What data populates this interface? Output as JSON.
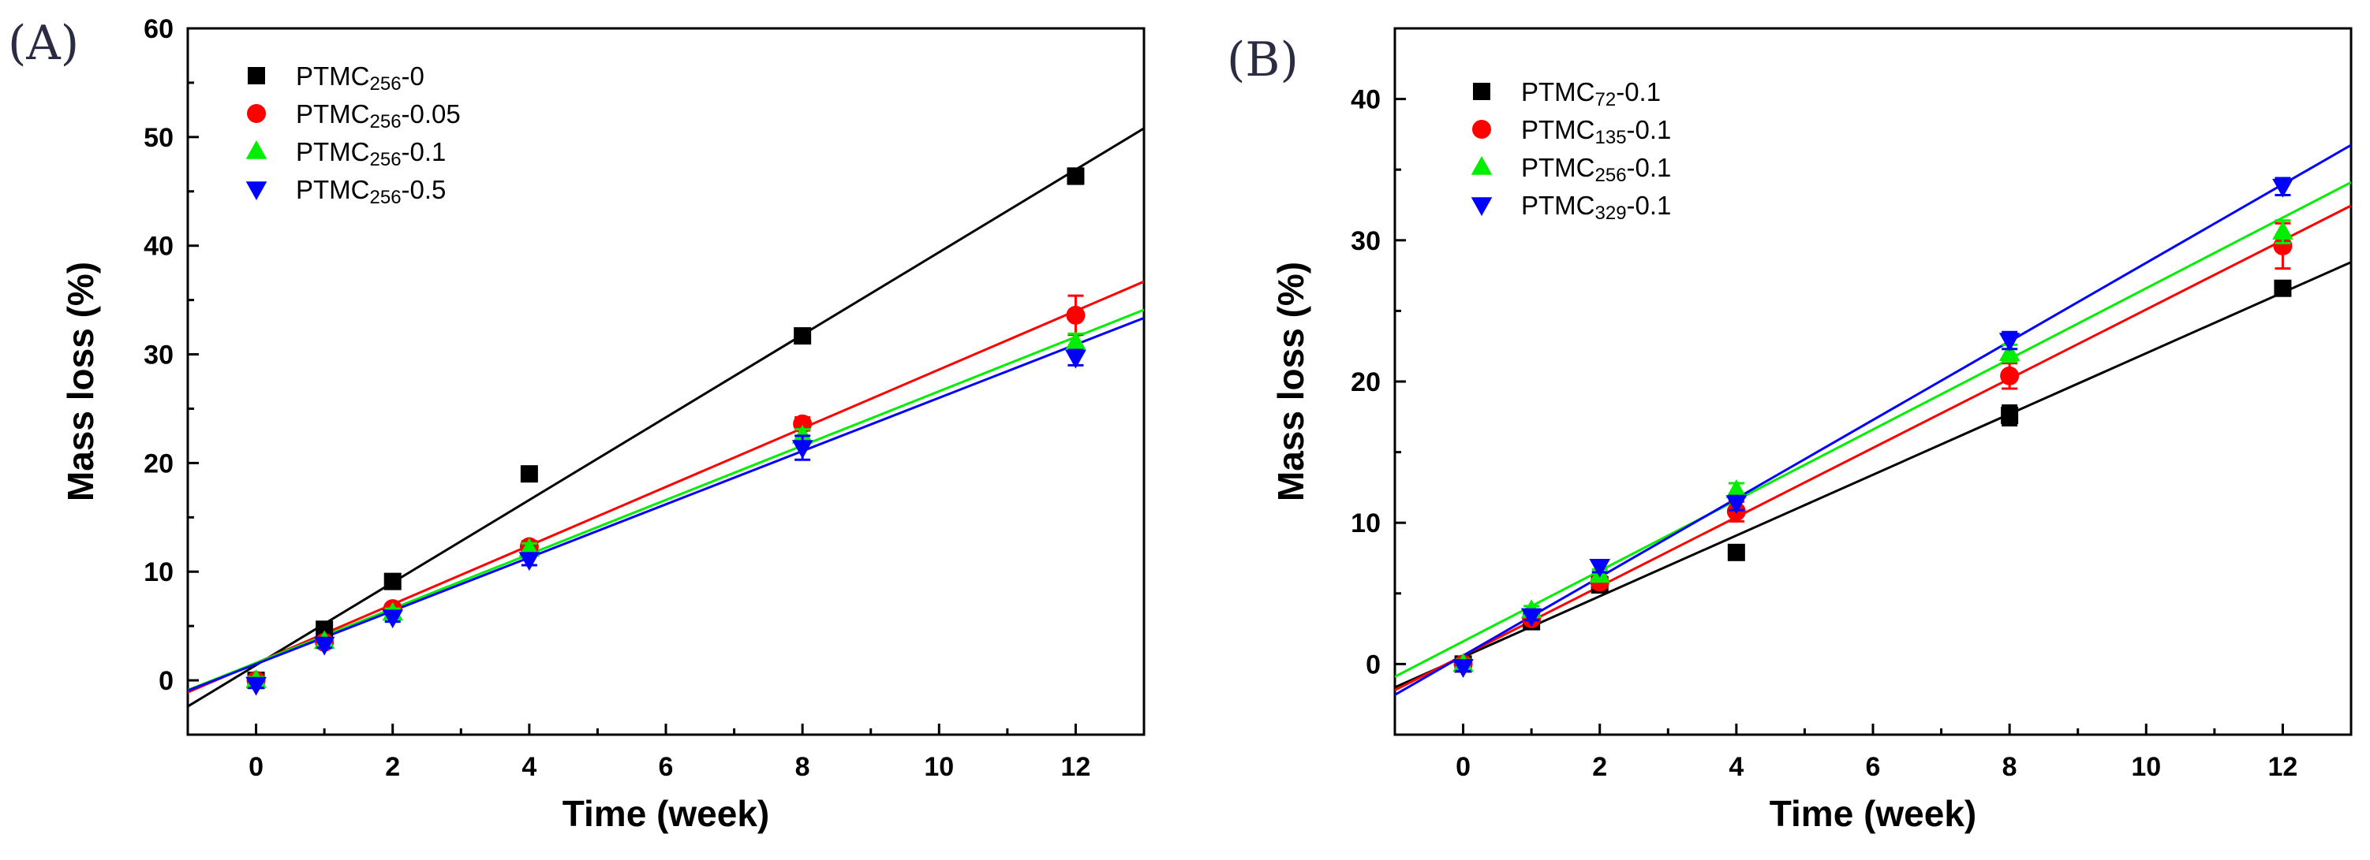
{
  "chart_data": [
    {
      "panel_label": "(A)",
      "type": "scatter",
      "xlabel": "Time (week)",
      "ylabel": "Mass loss (%)",
      "xlim": [
        -1,
        13
      ],
      "ylim": [
        -5,
        60
      ],
      "xticks": [
        0,
        2,
        4,
        6,
        8,
        10,
        12
      ],
      "yticks": [
        0,
        10,
        20,
        30,
        40,
        50,
        60
      ],
      "fit_lines": true,
      "legend_position": "top-left",
      "series": [
        {
          "name_base": "PTMC",
          "name_sub": "256",
          "name_suffix": "-0",
          "color": "#000000",
          "marker": "square",
          "x": [
            0,
            1,
            2,
            4,
            8,
            12
          ],
          "y": [
            0,
            4.7,
            9.1,
            19.0,
            31.7,
            46.4
          ],
          "err": [
            0.3,
            0.4,
            0.5,
            0.6,
            0.6,
            0.7
          ],
          "fit": {
            "slope": 3.8,
            "intercept": 1.4
          }
        },
        {
          "name_base": "PTMC",
          "name_sub": "256",
          "name_suffix": "-0.05",
          "color": "#ff0000",
          "marker": "circle",
          "x": [
            0,
            1,
            2,
            4,
            8,
            12
          ],
          "y": [
            0,
            3.5,
            6.6,
            12.3,
            23.6,
            33.6
          ],
          "err": [
            0.3,
            0.4,
            0.4,
            0.5,
            0.6,
            1.8
          ],
          "fit": {
            "slope": 2.7,
            "intercept": 1.6
          }
        },
        {
          "name_base": "PTMC",
          "name_sub": "256",
          "name_suffix": "-0.1",
          "color": "#00ee00",
          "marker": "triangle-up",
          "x": [
            0,
            1,
            2,
            4,
            8,
            12
          ],
          "y": [
            0,
            3.6,
            6.2,
            12.1,
            22.5,
            31.1
          ],
          "err": [
            0.3,
            0.3,
            0.4,
            0.5,
            0.6,
            0.8
          ],
          "fit": {
            "slope": 2.5,
            "intercept": 1.6
          }
        },
        {
          "name_base": "PTMC",
          "name_sub": "256",
          "name_suffix": "-0.5",
          "color": "#0000ff",
          "marker": "triangle-down",
          "x": [
            0,
            1,
            2,
            4,
            8,
            12
          ],
          "y": [
            -0.4,
            3.3,
            5.8,
            11.1,
            21.4,
            29.7
          ],
          "err": [
            0.3,
            0.3,
            0.4,
            0.5,
            1.1,
            0.7
          ],
          "fit": {
            "slope": 2.45,
            "intercept": 1.5
          }
        }
      ]
    },
    {
      "panel_label": "(B)",
      "type": "scatter",
      "xlabel": "Time (week)",
      "ylabel": "Mass loss (%)",
      "xlim": [
        -1,
        13
      ],
      "ylim": [
        -5,
        45
      ],
      "xticks": [
        0,
        2,
        4,
        6,
        8,
        10,
        12
      ],
      "yticks": [
        0,
        10,
        20,
        30,
        40
      ],
      "fit_lines": true,
      "legend_position": "top-left",
      "series": [
        {
          "name_base": "PTMC",
          "name_sub": "72",
          "name_suffix": "-0.1",
          "color": "#000000",
          "marker": "square",
          "x": [
            0,
            1,
            2,
            4,
            8,
            12
          ],
          "y": [
            0,
            3.0,
            5.6,
            7.9,
            17.6,
            26.6
          ],
          "err": [
            0.3,
            0.3,
            0.3,
            0.4,
            0.7,
            0.5
          ],
          "fit": {
            "slope": 2.15,
            "intercept": 0.5
          }
        },
        {
          "name_base": "PTMC",
          "name_sub": "135",
          "name_suffix": "-0.1",
          "color": "#ff0000",
          "marker": "circle",
          "x": [
            0,
            1,
            2,
            4,
            8,
            12
          ],
          "y": [
            0,
            3.2,
            5.8,
            10.8,
            20.4,
            29.6
          ],
          "err": [
            0.3,
            0.3,
            0.4,
            0.7,
            0.9,
            1.6
          ],
          "fit": {
            "slope": 2.45,
            "intercept": 0.6
          }
        },
        {
          "name_base": "PTMC",
          "name_sub": "256",
          "name_suffix": "-0.1",
          "color": "#00ee00",
          "marker": "triangle-up",
          "x": [
            0,
            1,
            2,
            4,
            8,
            12
          ],
          "y": [
            0,
            3.8,
            6.3,
            12.3,
            22.0,
            30.6
          ],
          "err": [
            0.3,
            0.3,
            0.4,
            0.5,
            0.6,
            0.8
          ],
          "fit": {
            "slope": 2.5,
            "intercept": 1.6
          }
        },
        {
          "name_base": "PTMC",
          "name_sub": "329",
          "name_suffix": "-0.1",
          "color": "#0000ff",
          "marker": "triangle-down",
          "x": [
            0,
            1,
            2,
            4,
            8,
            12
          ],
          "y": [
            -0.2,
            3.4,
            6.9,
            11.4,
            22.9,
            33.8
          ],
          "err": [
            0.3,
            0.3,
            0.4,
            0.5,
            0.6,
            0.6
          ],
          "fit": {
            "slope": 2.78,
            "intercept": 0.6
          }
        }
      ]
    }
  ]
}
